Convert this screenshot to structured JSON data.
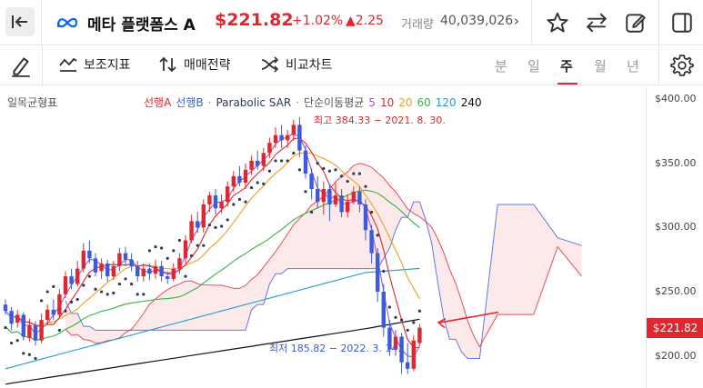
{
  "header": {
    "title": "메타 플랫폼스 A",
    "price": "$221.82",
    "change_percent": "+1.02%",
    "change_value": "▲2.25",
    "volume_label": "거래량",
    "volume_value": "40,039,026",
    "more_symbol": "›"
  },
  "toolbar": {
    "indicator_label": "보조지표",
    "strategy_label": "매매전략",
    "compare_label": "비교차트",
    "periods": [
      "분",
      "일",
      "주",
      "월",
      "년"
    ],
    "active_period": "주"
  },
  "legend": {
    "left_label": "일목균형표",
    "items": [
      {
        "text": "선행A",
        "color": "#e0262f"
      },
      {
        "text": "선행B",
        "color": "#3b5bdb"
      },
      {
        "text": "·",
        "color": "#888888"
      },
      {
        "text": "Parabolic SAR",
        "color": "#2b3a55"
      },
      {
        "text": "·",
        "color": "#888888"
      },
      {
        "text": "단순이동평균",
        "color": "#555555"
      },
      {
        "text": "5",
        "color": "#9b59d6"
      },
      {
        "text": "10",
        "color": "#e0262f"
      },
      {
        "text": "20",
        "color": "#f0a020"
      },
      {
        "text": "60",
        "color": "#3cb043"
      },
      {
        "text": "120",
        "color": "#1e9bd6"
      },
      {
        "text": "240",
        "color": "#111111"
      }
    ]
  },
  "annotations": {
    "high": "최고 384.33 − 2021. 8. 30.",
    "low": "최저 185.82 − 2022. 3. 14."
  },
  "colors": {
    "up": "#e0262f",
    "down": "#3b5bdb",
    "accent": "#e0262f"
  },
  "chart_data": {
    "type": "candlestick",
    "y_ticks": [
      "$400.00",
      "$350.00",
      "$300.00",
      "$250.00",
      "$200.00"
    ],
    "ylim": [
      175,
      410
    ],
    "current_price": "$221.82",
    "high_value": 384.33,
    "low_value": 185.82,
    "candles": [
      [
        240,
        235,
        244,
        232
      ],
      [
        235,
        225,
        238,
        220
      ],
      [
        226,
        232,
        236,
        222
      ],
      [
        232,
        215,
        234,
        212
      ],
      [
        214,
        224,
        229,
        211
      ],
      [
        224,
        212,
        227,
        208
      ],
      [
        212,
        228,
        233,
        210
      ],
      [
        228,
        236,
        240,
        225
      ],
      [
        236,
        232,
        244,
        228
      ],
      [
        232,
        248,
        252,
        230
      ],
      [
        248,
        262,
        266,
        245
      ],
      [
        262,
        256,
        268,
        252
      ],
      [
        256,
        268,
        274,
        254
      ],
      [
        268,
        282,
        288,
        265
      ],
      [
        282,
        276,
        290,
        272
      ],
      [
        276,
        265,
        280,
        262
      ],
      [
        266,
        272,
        276,
        260
      ],
      [
        272,
        262,
        275,
        258
      ],
      [
        262,
        270,
        274,
        259
      ],
      [
        270,
        280,
        284,
        266
      ],
      [
        280,
        275,
        285,
        270
      ],
      [
        275,
        270,
        280,
        266
      ],
      [
        270,
        262,
        274,
        258
      ],
      [
        262,
        268,
        272,
        258
      ],
      [
        268,
        264,
        272,
        259
      ],
      [
        264,
        270,
        275,
        260
      ],
      [
        270,
        262,
        274,
        258
      ],
      [
        262,
        260,
        266,
        256
      ],
      [
        260,
        268,
        272,
        258
      ],
      [
        268,
        276,
        280,
        264
      ],
      [
        276,
        290,
        294,
        272
      ],
      [
        290,
        305,
        310,
        288
      ],
      [
        305,
        300,
        312,
        296
      ],
      [
        300,
        318,
        322,
        296
      ],
      [
        318,
        325,
        328,
        312
      ],
      [
        325,
        315,
        330,
        310
      ],
      [
        315,
        320,
        326,
        311
      ],
      [
        320,
        332,
        336,
        316
      ],
      [
        332,
        340,
        344,
        328
      ],
      [
        340,
        335,
        348,
        332
      ],
      [
        335,
        345,
        350,
        330
      ],
      [
        345,
        352,
        356,
        341
      ],
      [
        352,
        348,
        360,
        345
      ],
      [
        348,
        358,
        362,
        344
      ],
      [
        358,
        366,
        370,
        354
      ],
      [
        366,
        372,
        378,
        362
      ],
      [
        372,
        368,
        380,
        362
      ],
      [
        368,
        372,
        376,
        362
      ],
      [
        372,
        380,
        384,
        368
      ],
      [
        380,
        360,
        386,
        355
      ],
      [
        360,
        342,
        364,
        338
      ],
      [
        342,
        330,
        346,
        322
      ],
      [
        330,
        320,
        340,
        315
      ],
      [
        320,
        330,
        336,
        310
      ],
      [
        330,
        318,
        334,
        305
      ],
      [
        318,
        325,
        335,
        316
      ],
      [
        325,
        312,
        330,
        308
      ],
      [
        312,
        320,
        326,
        308
      ],
      [
        320,
        328,
        332,
        318
      ],
      [
        328,
        318,
        332,
        312
      ],
      [
        318,
        298,
        322,
        290
      ],
      [
        298,
        280,
        302,
        272
      ],
      [
        280,
        250,
        284,
        242
      ],
      [
        250,
        222,
        256,
        215
      ],
      [
        222,
        205,
        228,
        200
      ],
      [
        205,
        215,
        220,
        200
      ],
      [
        215,
        195,
        218,
        186
      ],
      [
        195,
        190,
        210,
        186
      ],
      [
        190,
        212,
        216,
        188
      ],
      [
        210,
        222,
        225,
        208
      ]
    ]
  }
}
